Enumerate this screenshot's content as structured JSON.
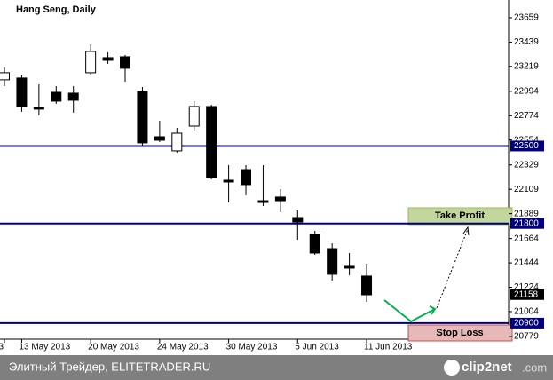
{
  "chart_data": {
    "type": "candlestick",
    "title": "Hang Seng, Daily",
    "categories": [
      "3",
      "13 May 2013",
      null,
      null,
      null,
      "20 May 2013",
      null,
      null,
      null,
      "24 May 2013",
      null,
      null,
      null,
      "30 May 2013",
      null,
      null,
      null,
      "5 Jun 2013",
      null,
      null,
      null,
      "11 Jun 2013"
    ],
    "open": [
      23098,
      23114,
      22849,
      22985,
      22977,
      23162,
      23298,
      23306,
      22993,
      22584,
      22456,
      22680,
      22857,
      22191,
      22287,
      22006,
      22039,
      21854,
      21702,
      21573,
      21413,
      21325
    ],
    "high": [
      23210,
      23138,
      23057,
      23041,
      23041,
      23418,
      23346,
      23322,
      23033,
      22728,
      22664,
      22905,
      22873,
      22327,
      22327,
      22327,
      22111,
      21918,
      21734,
      21621,
      21533,
      21437
    ],
    "low": [
      23041,
      22809,
      22777,
      22881,
      22801,
      23146,
      23242,
      23081,
      22496,
      22536,
      22440,
      22632,
      22199,
      21990,
      22055,
      21958,
      21902,
      21653,
      21517,
      21285,
      21333,
      21092
    ],
    "close": [
      23162,
      22857,
      22833,
      22905,
      22913,
      23354,
      23274,
      23202,
      22528,
      22552,
      22616,
      22857,
      22215,
      22175,
      22151,
      21990,
      22006,
      21814,
      21533,
      21341,
      21397,
      21156
    ],
    "up_color": "#ffffff",
    "down_color": "#000000",
    "ylim": [
      20755,
      23819
    ],
    "yticks": [
      23659,
      23439,
      23219,
      22994,
      22774,
      22554,
      22329,
      22109,
      21889,
      21664,
      21444,
      21224,
      21004,
      20779
    ],
    "levels": [
      22500,
      21800,
      20900
    ],
    "level_color": "#00007f",
    "last_price": 21158,
    "annotations": {
      "take_profit": "Take Profit",
      "stop_loss": "Stop Loss"
    }
  },
  "footer": {
    "source": "Элитный Трейдер, ELITETRADER.RU",
    "logo": "clip2net",
    "logo_suffix": ".com"
  }
}
